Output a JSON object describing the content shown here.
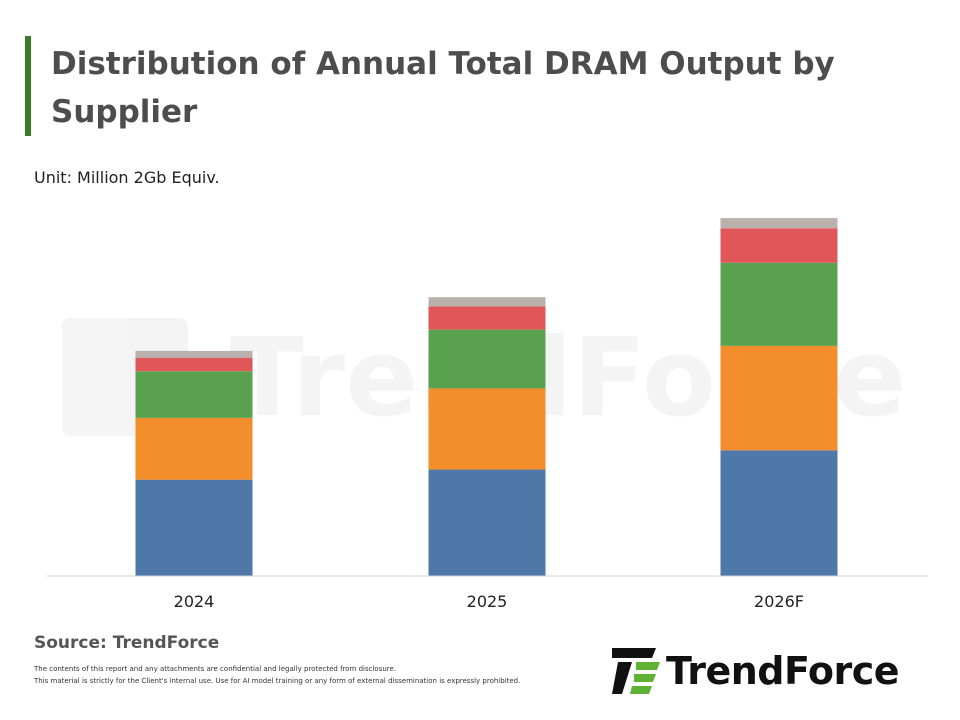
{
  "title": "Distribution of Annual Total DRAM Output by Supplier",
  "unit": "Unit: Million 2Gb Equiv.",
  "source": "Source: TrendForce",
  "disclaimer": [
    "The contents of this report and any attachments are confidential and legally protected from disclosure.",
    "This material is strictly for the Client's internal use. Use for AI model training or any form of external dissemination is expressly prohibited."
  ],
  "watermark": "TrendForce",
  "logo": {
    "text": "TrendForce",
    "icon": "trendforce-logo-icon"
  },
  "colors": {
    "accent": "#3a7d27",
    "series": [
      "#4e78a7",
      "#f28e2b",
      "#59a14f",
      "#e15759",
      "#bab0ac"
    ],
    "axis": "#d0d0d0",
    "logo_green": "#5fb233"
  },
  "chart_data": {
    "type": "bar",
    "stacked": true,
    "title": "Distribution of Annual Total DRAM Output by Supplier",
    "ylabel": "Unit: Million 2Gb Equiv.",
    "categories": [
      "2024",
      "2025",
      "2026F"
    ],
    "series": [
      {
        "values": [
          95,
          105,
          124
        ]
      },
      {
        "values": [
          61,
          80,
          103
        ]
      },
      {
        "values": [
          46,
          58,
          82
        ]
      },
      {
        "values": [
          13,
          23,
          34
        ]
      },
      {
        "values": [
          7,
          9,
          10
        ]
      }
    ],
    "ylim": [
      0,
      360
    ],
    "grid": false,
    "legend": "none"
  }
}
